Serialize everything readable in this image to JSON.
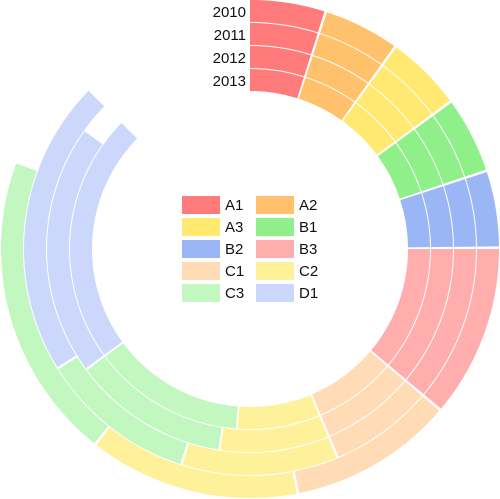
{
  "chart_data": {
    "type": "radial-bar",
    "title": "",
    "categories": [
      "A1",
      "A2",
      "A3",
      "B1",
      "B2",
      "B3",
      "C1",
      "C2",
      "C3",
      "D1"
    ],
    "colors": {
      "A1": "#ff7b7b",
      "A2": "#ffc16b",
      "A3": "#ffe970",
      "B1": "#8ff08a",
      "B2": "#9bb6f5",
      "B3": "#ffadad",
      "C1": "#ffdcb5",
      "C2": "#fff19a",
      "C3": "#c2f7c0",
      "D1": "#cbd8fb"
    },
    "series": [
      {
        "name": "2010",
        "values": [
          20,
          20,
          20,
          20,
          20,
          45,
          43,
          55,
          80,
          0
        ]
      },
      {
        "name": "2011",
        "values": [
          20,
          20,
          20,
          20,
          20,
          45,
          30,
          45,
          45,
          85
        ]
      },
      {
        "name": "2012",
        "values": [
          20,
          20,
          20,
          20,
          20,
          45,
          30,
          35,
          50,
          80
        ]
      },
      {
        "name": "2013",
        "values": [
          20,
          20,
          20,
          20,
          20,
          45,
          30,
          30,
          55,
          90
        ]
      }
    ],
    "legend": {
      "position": "center",
      "columns": 2
    }
  }
}
